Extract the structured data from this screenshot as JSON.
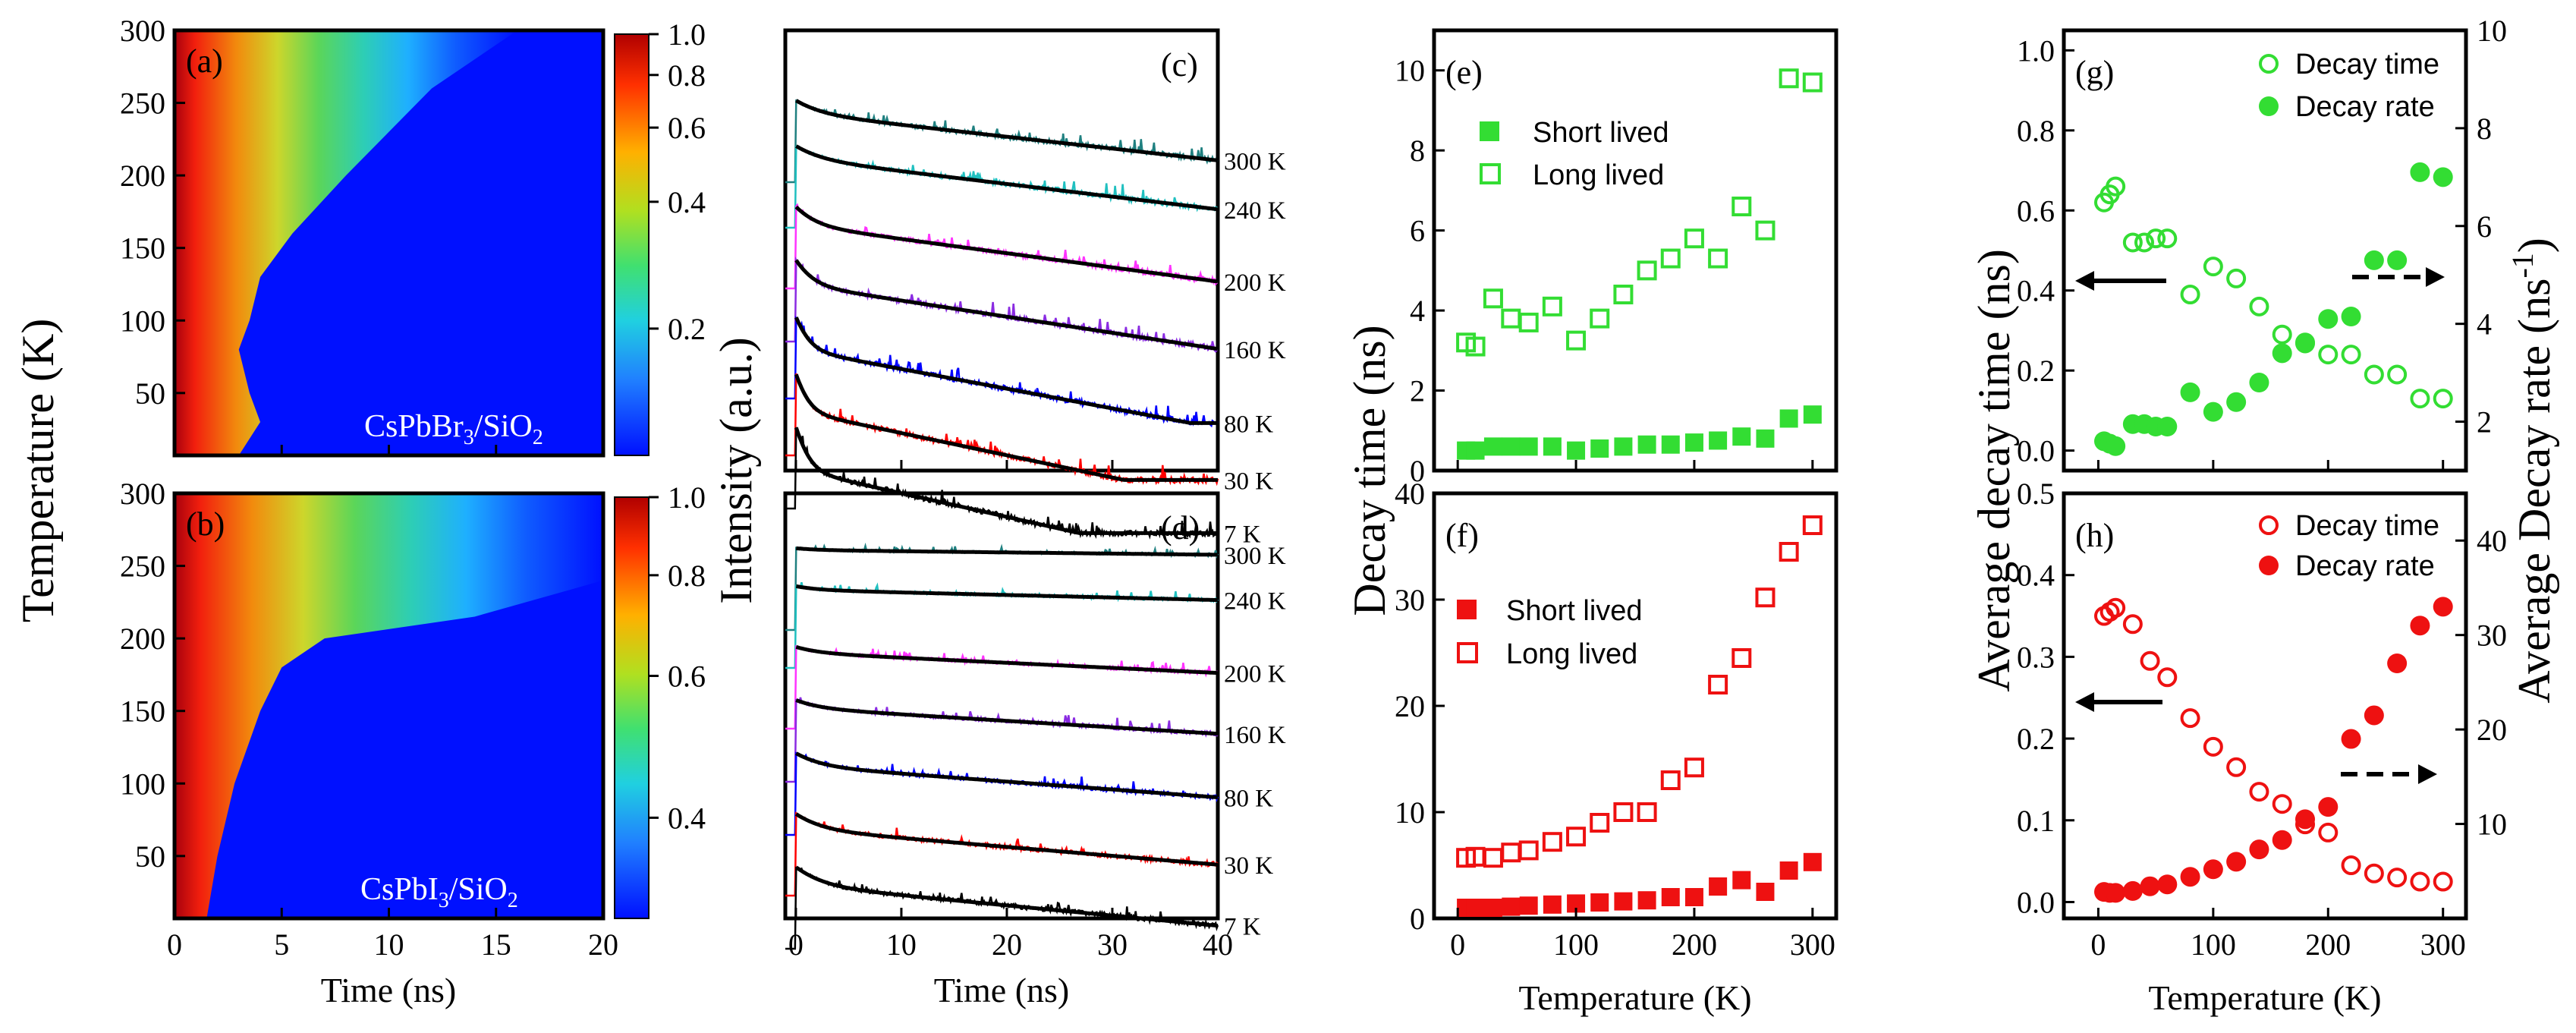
{
  "chart_data": [
    {
      "panel": "(a)",
      "type": "heatmap",
      "sample": "CsPbBr3/SiO2",
      "sample_parts": {
        "a": "CsPbBr",
        "b": "3",
        "c": "/SiO",
        "d": "2"
      },
      "xlabel": "Time (ns)",
      "ylabel": "Temperature (K)",
      "xlim": [
        0,
        20
      ],
      "ylim": [
        7,
        300
      ],
      "xticks": [
        "0",
        "5",
        "10",
        "15",
        "20"
      ],
      "yticks": [
        "50",
        "100",
        "150",
        "200",
        "250",
        "300"
      ],
      "colorbar": {
        "scale": "log",
        "ticks": [
          "1.0",
          "0.8",
          "0.6",
          "0.4",
          "0.2"
        ],
        "values": [
          1.0,
          0.8,
          0.6,
          0.4,
          0.2
        ],
        "min": 0.1
      },
      "decay_front": [
        [
          7,
          3
        ],
        [
          30,
          4
        ],
        [
          50,
          3.5
        ],
        [
          80,
          3
        ],
        [
          100,
          3.5
        ],
        [
          130,
          4
        ],
        [
          160,
          5.5
        ],
        [
          200,
          8
        ],
        [
          230,
          10
        ],
        [
          260,
          12
        ],
        [
          300,
          16
        ]
      ],
      "colors": {
        "hot": "#cc0000",
        "cold": "#0000ff"
      }
    },
    {
      "panel": "(b)",
      "type": "heatmap",
      "sample": "CsPbI3/SiO2",
      "sample_parts": {
        "a": "CsPbI",
        "b": "3",
        "c": "/SiO",
        "d": "2"
      },
      "xlabel": "Time (ns)",
      "xlim": [
        0,
        20
      ],
      "ylim": [
        7,
        300
      ],
      "xticks": [
        "0",
        "5",
        "10",
        "15",
        "20"
      ],
      "yticks": [
        "50",
        "100",
        "150",
        "200",
        "250",
        "300"
      ],
      "colorbar": {
        "scale": "log",
        "ticks": [
          "1.0",
          "0.8",
          "0.6",
          "0.4"
        ],
        "values": [
          1.0,
          0.8,
          0.6,
          0.4
        ],
        "min": 0.3
      },
      "decay_front": [
        [
          7,
          1.5
        ],
        [
          50,
          2
        ],
        [
          100,
          2.8
        ],
        [
          150,
          4
        ],
        [
          180,
          5
        ],
        [
          200,
          7
        ],
        [
          215,
          14
        ],
        [
          240,
          20
        ],
        [
          300,
          20
        ]
      ]
    },
    {
      "panel": "(c)",
      "type": "line",
      "xlabel": "Time (ns)",
      "ylabel": "Intensity (a.u.)",
      "xlim": [
        -1,
        40
      ],
      "xticks": [
        "0",
        "10",
        "20",
        "30",
        "40"
      ],
      "series": [
        {
          "name": "300 K",
          "color": "#1f8080",
          "fit": {
            "fast": 0.3,
            "tau1": 2.0,
            "tau2": 30
          }
        },
        {
          "name": "240 K",
          "color": "#20c0c0",
          "fit": {
            "fast": 0.3,
            "tau1": 2.0,
            "tau2": 28
          }
        },
        {
          "name": "200 K",
          "color": "#ff33ff",
          "fit": {
            "fast": 0.4,
            "tau1": 1.5,
            "tau2": 25
          }
        },
        {
          "name": "160 K",
          "color": "#8a2be2",
          "fit": {
            "fast": 0.5,
            "tau1": 1.2,
            "tau2": 22
          }
        },
        {
          "name": "80 K",
          "color": "#0000ff",
          "fit": {
            "fast": 0.6,
            "tau1": 0.9,
            "tau2": 18
          }
        },
        {
          "name": "30 K",
          "color": "#ff0000",
          "fit": {
            "fast": 0.65,
            "tau1": 0.8,
            "tau2": 16
          }
        },
        {
          "name": "7 K",
          "color": "#000000",
          "fit": {
            "fast": 0.7,
            "tau1": 0.8,
            "tau2": 15
          }
        }
      ]
    },
    {
      "panel": "(d)",
      "type": "line",
      "xlabel": "Time (ns)",
      "xlim": [
        -1,
        40
      ],
      "xticks": [
        "0",
        "10",
        "20",
        "30",
        "40"
      ],
      "series": [
        {
          "name": "300 K",
          "color": "#1f8080",
          "fit": {
            "fast": 0.05,
            "tau1": 2.0,
            "tau2": 300
          }
        },
        {
          "name": "240 K",
          "color": "#20c0c0",
          "fit": {
            "fast": 0.1,
            "tau1": 2.0,
            "tau2": 140
          }
        },
        {
          "name": "200 K",
          "color": "#ff33ff",
          "fit": {
            "fast": 0.15,
            "tau1": 2.0,
            "tau2": 70
          }
        },
        {
          "name": "160 K",
          "color": "#8a2be2",
          "fit": {
            "fast": 0.2,
            "tau1": 2.0,
            "tau2": 55
          }
        },
        {
          "name": "80 K",
          "color": "#0000ff",
          "fit": {
            "fast": 0.3,
            "tau1": 2.0,
            "tau2": 45
          }
        },
        {
          "name": "30 K",
          "color": "#ff0000",
          "fit": {
            "fast": 0.35,
            "tau1": 2.0,
            "tau2": 40
          }
        },
        {
          "name": "7 K",
          "color": "#000000",
          "fit": {
            "fast": 0.4,
            "tau1": 2.0,
            "tau2": 35
          }
        }
      ]
    },
    {
      "panel": "(e)",
      "type": "scatter",
      "ylabel": "Decay time (ns)",
      "xlim": [
        -20,
        320
      ],
      "ylim": [
        0,
        11
      ],
      "yticks": [
        "0",
        "2",
        "4",
        "6",
        "8",
        "10"
      ],
      "yticks_values": [
        0,
        2,
        4,
        6,
        8,
        10
      ],
      "legend": "upper-left",
      "color": "#33dd33",
      "series": [
        {
          "name": "Short lived",
          "marker": "filled-square",
          "x": [
            7,
            15,
            30,
            45,
            60,
            80,
            100,
            120,
            140,
            160,
            180,
            200,
            220,
            240,
            260,
            280,
            300
          ],
          "y": [
            0.5,
            0.5,
            0.6,
            0.6,
            0.6,
            0.6,
            0.5,
            0.55,
            0.6,
            0.65,
            0.65,
            0.7,
            0.75,
            0.85,
            0.8,
            1.3,
            1.4
          ]
        },
        {
          "name": "Long lived",
          "marker": "open-square",
          "x": [
            7,
            15,
            30,
            45,
            60,
            80,
            100,
            120,
            140,
            160,
            180,
            200,
            220,
            240,
            260,
            280,
            300
          ],
          "y": [
            3.2,
            3.1,
            4.3,
            3.8,
            3.7,
            4.1,
            3.25,
            3.8,
            4.4,
            5.0,
            5.3,
            5.8,
            5.3,
            6.6,
            6.0,
            9.8,
            9.7
          ]
        }
      ]
    },
    {
      "panel": "(f)",
      "type": "scatter",
      "xlabel": "Temperature (K)",
      "xlim": [
        -20,
        320
      ],
      "ylim": [
        0,
        40
      ],
      "xticks": [
        "0",
        "100",
        "200",
        "300"
      ],
      "xticks_values": [
        0,
        100,
        200,
        300
      ],
      "yticks": [
        "0",
        "10",
        "20",
        "30",
        "40"
      ],
      "yticks_values": [
        0,
        10,
        20,
        30,
        40
      ],
      "legend": "middle-left",
      "color": "#ee1111",
      "series": [
        {
          "name": "Short lived",
          "marker": "filled-square",
          "x": [
            7,
            15,
            30,
            45,
            60,
            80,
            100,
            120,
            140,
            160,
            180,
            200,
            220,
            240,
            260,
            280,
            300
          ],
          "y": [
            1.0,
            1.0,
            1.0,
            1.1,
            1.2,
            1.3,
            1.4,
            1.5,
            1.6,
            1.7,
            2.0,
            2.0,
            3.0,
            3.6,
            2.5,
            4.5,
            5.3
          ]
        },
        {
          "name": "Long lived",
          "marker": "open-square",
          "x": [
            7,
            15,
            30,
            45,
            60,
            80,
            100,
            120,
            140,
            160,
            180,
            200,
            220,
            240,
            260,
            280,
            300
          ],
          "y": [
            5.7,
            5.8,
            5.7,
            6.2,
            6.4,
            7.2,
            7.7,
            9.0,
            10.0,
            10.0,
            13.0,
            14.2,
            22.0,
            24.5,
            30.2,
            34.5,
            37.0
          ]
        }
      ]
    },
    {
      "panel": "(g)",
      "type": "scatter",
      "ylabel_left": "Average decay time (ns)",
      "ylabel_right": "Average Decay rate (ns-1)",
      "ylabel_right_parts": {
        "main": "Average Decay rate (ns",
        "sup": "-1",
        "close": ")"
      },
      "xlim": [
        -30,
        320
      ],
      "ylim_left": [
        -0.05,
        1.05
      ],
      "ylim_right": [
        1,
        10
      ],
      "yticks_left": [
        "0.0",
        "0.2",
        "0.4",
        "0.6",
        "0.8",
        "1.0"
      ],
      "yticks_left_values": [
        0,
        0.2,
        0.4,
        0.6,
        0.8,
        1.0
      ],
      "yticks_right": [
        "2",
        "4",
        "6",
        "8",
        "10"
      ],
      "yticks_right_values": [
        2,
        4,
        6,
        8,
        10
      ],
      "legend": "top-right",
      "color": "#33dd33",
      "series": [
        {
          "name": "Decay time",
          "marker": "open-circle",
          "axis": "left",
          "x": [
            5,
            10,
            15,
            30,
            40,
            50,
            60,
            80,
            100,
            120,
            140,
            160,
            180,
            200,
            220,
            240,
            260,
            280,
            300
          ],
          "y": [
            0.62,
            0.64,
            0.66,
            0.52,
            0.52,
            0.53,
            0.53,
            0.39,
            0.46,
            0.43,
            0.36,
            0.29,
            0.27,
            0.24,
            0.24,
            0.19,
            0.19,
            0.13,
            0.13
          ]
        },
        {
          "name": "Decay rate",
          "marker": "filled-circle",
          "axis": "right",
          "x": [
            5,
            10,
            15,
            30,
            40,
            50,
            60,
            80,
            100,
            120,
            140,
            160,
            180,
            200,
            220,
            240,
            260,
            280,
            300
          ],
          "y": [
            1.6,
            1.55,
            1.5,
            1.95,
            1.95,
            1.9,
            1.9,
            2.6,
            2.2,
            2.4,
            2.8,
            3.4,
            3.6,
            4.1,
            4.15,
            5.3,
            5.3,
            7.1,
            7.0
          ]
        }
      ],
      "arrows": [
        "solid-left",
        "dashed-right"
      ]
    },
    {
      "panel": "(h)",
      "type": "scatter",
      "xlabel": "Temperature (K)",
      "xlim": [
        -30,
        320
      ],
      "ylim_left": [
        -0.02,
        0.5
      ],
      "ylim_right": [
        0,
        45
      ],
      "xticks": [
        "0",
        "100",
        "200",
        "300"
      ],
      "xticks_values": [
        0,
        100,
        200,
        300
      ],
      "yticks_left": [
        "0.0",
        "0.1",
        "0.2",
        "0.3",
        "0.4",
        "0.5"
      ],
      "yticks_left_values": [
        0,
        0.1,
        0.2,
        0.3,
        0.4,
        0.5
      ],
      "yticks_right": [
        "10",
        "20",
        "30",
        "40"
      ],
      "yticks_right_values": [
        10,
        20,
        30,
        40
      ],
      "legend": "top-right",
      "color": "#ee1111",
      "series": [
        {
          "name": "Decay time",
          "marker": "open-circle",
          "axis": "left",
          "x": [
            5,
            10,
            15,
            30,
            45,
            60,
            80,
            100,
            120,
            140,
            160,
            180,
            200,
            220,
            240,
            260,
            280,
            300
          ],
          "y": [
            0.35,
            0.355,
            0.36,
            0.34,
            0.295,
            0.275,
            0.225,
            0.19,
            0.165,
            0.135,
            0.12,
            0.095,
            0.085,
            0.045,
            0.035,
            0.03,
            0.025,
            0.025
          ]
        },
        {
          "name": "Decay rate",
          "marker": "filled-circle",
          "axis": "right",
          "x": [
            5,
            10,
            15,
            30,
            45,
            60,
            80,
            100,
            120,
            140,
            160,
            180,
            200,
            220,
            240,
            260,
            280,
            300
          ],
          "y": [
            2.8,
            2.7,
            2.7,
            2.9,
            3.4,
            3.6,
            4.4,
            5.2,
            6.0,
            7.3,
            8.3,
            10.5,
            11.8,
            19.0,
            21.5,
            27.0,
            31.0,
            33.0
          ]
        }
      ],
      "arrows": [
        "solid-left",
        "dashed-right"
      ]
    }
  ]
}
